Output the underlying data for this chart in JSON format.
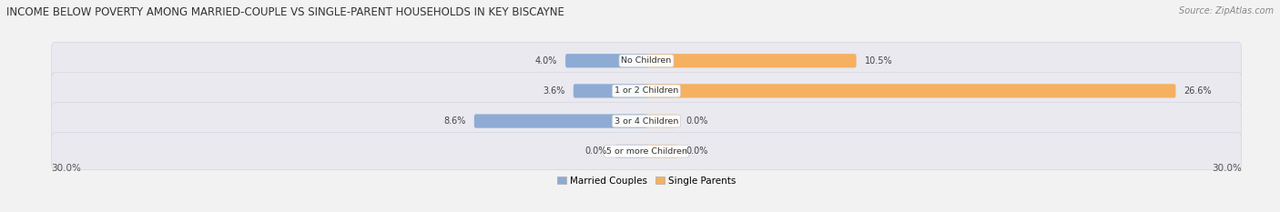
{
  "title": "INCOME BELOW POVERTY AMONG MARRIED-COUPLE VS SINGLE-PARENT HOUSEHOLDS IN KEY BISCAYNE",
  "source": "Source: ZipAtlas.com",
  "categories": [
    "No Children",
    "1 or 2 Children",
    "3 or 4 Children",
    "5 or more Children"
  ],
  "married_values": [
    4.0,
    3.6,
    8.6,
    0.0
  ],
  "single_values": [
    10.5,
    26.6,
    0.0,
    0.0
  ],
  "married_color": "#8eabd4",
  "single_color": "#f5b060",
  "single_color_light": "#f8cfa0",
  "married_label": "Married Couples",
  "single_label": "Single Parents",
  "x_max": 30.0,
  "axis_label_left": "30.0%",
  "axis_label_right": "30.0%",
  "bg_color": "#f2f2f2",
  "row_bg_color": "#e8e8ee",
  "title_fontsize": 8.5,
  "source_fontsize": 7,
  "label_fontsize": 7.5,
  "bar_label_fontsize": 7,
  "category_fontsize": 6.8,
  "stub_size": 1.5
}
